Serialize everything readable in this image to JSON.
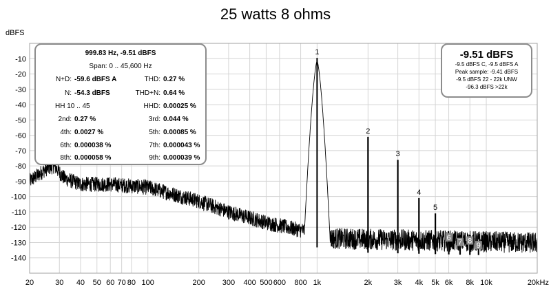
{
  "chart_data": {
    "type": "line",
    "title": "25 watts 8 ohms",
    "ylabel": "dBFS",
    "xlabel": "",
    "x_scale": "log",
    "xlim": [
      20,
      20000
    ],
    "ylim": [
      -150,
      0
    ],
    "grid": true,
    "x_ticks": [
      {
        "value": 20,
        "label": "20"
      },
      {
        "value": 30,
        "label": "30"
      },
      {
        "value": 40,
        "label": "40"
      },
      {
        "value": 50,
        "label": "50"
      },
      {
        "value": 60,
        "label": "60"
      },
      {
        "value": 70,
        "label": "70"
      },
      {
        "value": 80,
        "label": "80"
      },
      {
        "value": 100,
        "label": "100"
      },
      {
        "value": 200,
        "label": "200"
      },
      {
        "value": 300,
        "label": "300"
      },
      {
        "value": 400,
        "label": "400"
      },
      {
        "value": 500,
        "label": "500"
      },
      {
        "value": 600,
        "label": "600"
      },
      {
        "value": 800,
        "label": "800"
      },
      {
        "value": 1000,
        "label": "1k"
      },
      {
        "value": 2000,
        "label": "2k"
      },
      {
        "value": 3000,
        "label": "3k"
      },
      {
        "value": 4000,
        "label": "4k"
      },
      {
        "value": 5000,
        "label": "5k"
      },
      {
        "value": 6000,
        "label": "6k"
      },
      {
        "value": 8000,
        "label": "8k"
      },
      {
        "value": 10000,
        "label": "10k"
      },
      {
        "value": 20000,
        "label": "20kHz"
      }
    ],
    "y_ticks": [
      {
        "value": -10,
        "label": "-10"
      },
      {
        "value": -20,
        "label": "-20"
      },
      {
        "value": -30,
        "label": "-30"
      },
      {
        "value": -40,
        "label": "-40"
      },
      {
        "value": -50,
        "label": "-50"
      },
      {
        "value": -60,
        "label": "-60"
      },
      {
        "value": -70,
        "label": "-70"
      },
      {
        "value": -80,
        "label": "-80"
      },
      {
        "value": -90,
        "label": "-90"
      },
      {
        "value": -100,
        "label": "-100"
      },
      {
        "value": -110,
        "label": "-110"
      },
      {
        "value": -120,
        "label": "-120"
      },
      {
        "value": -130,
        "label": "-130"
      },
      {
        "value": -140,
        "label": "-140"
      }
    ],
    "harmonics": [
      {
        "label": "1",
        "freq": 1000,
        "level": -9.5
      },
      {
        "label": "2",
        "freq": 2000,
        "level": -61
      },
      {
        "label": "3",
        "freq": 3000,
        "level": -76
      },
      {
        "label": "4",
        "freq": 4000,
        "level": -101
      },
      {
        "label": "5",
        "freq": 5000,
        "level": -111
      },
      {
        "label": "6",
        "freq": 6000,
        "level": -128
      },
      {
        "label": "7",
        "freq": 7000,
        "level": -131
      },
      {
        "label": "8",
        "freq": 8000,
        "level": -130
      },
      {
        "label": "9",
        "freq": 9000,
        "level": -133
      }
    ],
    "noise_envelope": [
      {
        "f": 20,
        "db": -92
      },
      {
        "f": 25,
        "db": -84
      },
      {
        "f": 28,
        "db": -82
      },
      {
        "f": 32,
        "db": -90
      },
      {
        "f": 40,
        "db": -94
      },
      {
        "f": 60,
        "db": -94
      },
      {
        "f": 100,
        "db": -96
      },
      {
        "f": 200,
        "db": -105
      },
      {
        "f": 300,
        "db": -112
      },
      {
        "f": 500,
        "db": -119
      },
      {
        "f": 800,
        "db": -124
      },
      {
        "f": 900,
        "db": -124
      },
      {
        "f": 1100,
        "db": -130
      },
      {
        "f": 20000,
        "db": -133
      }
    ]
  },
  "info_box": {
    "header": "999.83 Hz, -9.51 dBFS",
    "span": "Span: 0 .. 45,600 Hz",
    "rows": [
      {
        "l1": "N+D:",
        "v1": "-59.6 dBFS A",
        "l2": "THD:",
        "v2": "0.27 %"
      },
      {
        "l1": "N:",
        "v1": "-54.3 dBFS",
        "l2": "THD+N:",
        "v2": "0.64 %"
      },
      {
        "l1": "HH 10 .. 45",
        "v1": "",
        "l2": "HHD:",
        "v2": "0.00025 %"
      },
      {
        "l1": "2nd:",
        "v1": "0.27 %",
        "l2": "3rd:",
        "v2": "0.044 %"
      },
      {
        "l1": "4th:",
        "v1": "0.0027 %",
        "l2": "5th:",
        "v2": "0.00085 %"
      },
      {
        "l1": "6th:",
        "v1": "0.000038 %",
        "l2": "7th:",
        "v2": "0.000043 %"
      },
      {
        "l1": "8th:",
        "v1": "0.000058 %",
        "l2": "9th:",
        "v2": "0.000039 %"
      }
    ]
  },
  "level_box": {
    "big": "-9.51 dBFS",
    "lines": [
      "-9.5 dBFS C, -9.5 dBFS A",
      "Peak sample: -9.41 dBFS",
      "-9.5 dBFS 22 - 22k UNW",
      "-96.3 dBFS >22k"
    ]
  },
  "colors": {
    "trace": "#000000",
    "grid": "#d4d4d4",
    "box_border": "#8c8c8c"
  }
}
